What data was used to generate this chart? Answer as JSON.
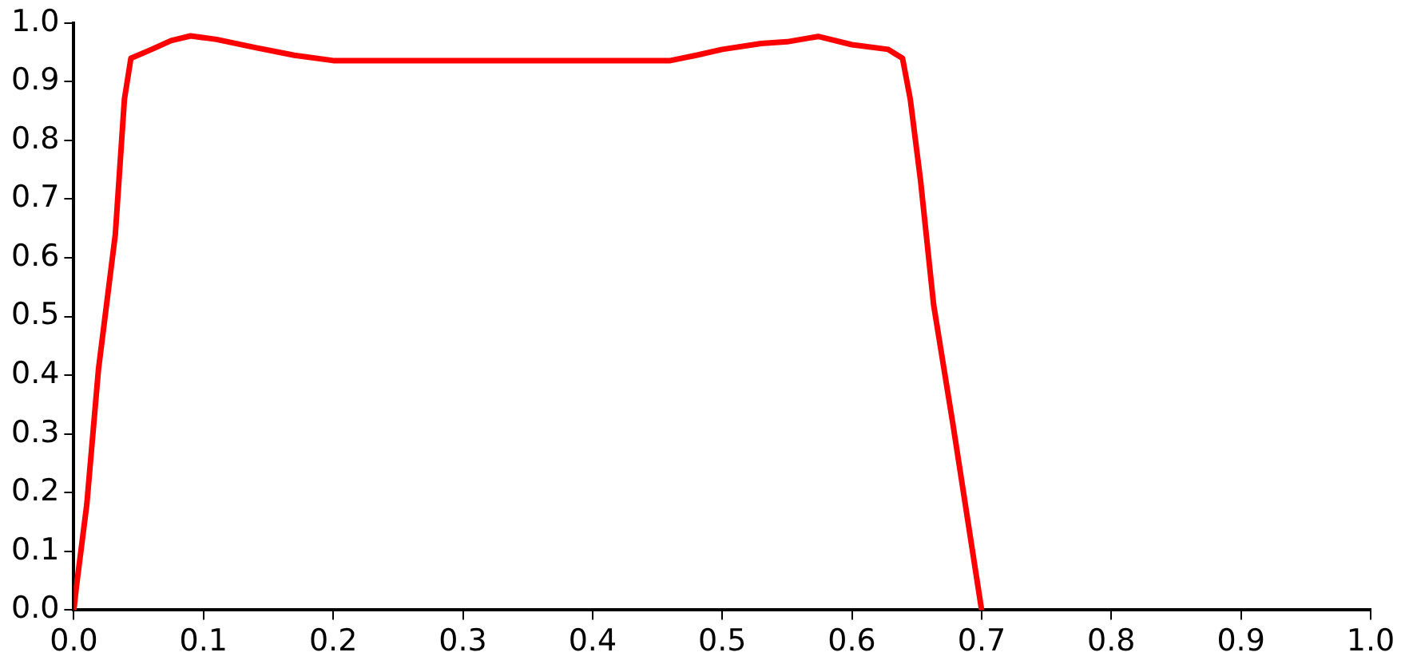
{
  "chart_data": {
    "type": "line",
    "x": [
      0,
      0.002,
      0.01,
      0.019,
      0.032,
      0.039,
      0.044,
      0.06,
      0.075,
      0.09,
      0.11,
      0.14,
      0.17,
      0.2,
      0.3,
      0.4,
      0.46,
      0.48,
      0.5,
      0.53,
      0.55,
      0.574,
      0.6,
      0.628,
      0.639,
      0.645,
      0.653,
      0.663,
      0.678,
      0.7
    ],
    "series": [
      {
        "color": "#ff0000",
        "values": [
          0,
          0.04,
          0.18,
          0.41,
          0.64,
          0.87,
          0.94,
          0.955,
          0.97,
          0.978,
          0.972,
          0.958,
          0.945,
          0.936,
          0.936,
          0.936,
          0.936,
          0.945,
          0.955,
          0.965,
          0.968,
          0.977,
          0.963,
          0.955,
          0.94,
          0.87,
          0.73,
          0.52,
          0.315,
          0
        ]
      }
    ],
    "xlim": [
      0,
      1
    ],
    "xticks": [
      {
        "value": 0,
        "label": "0.0"
      },
      0.1,
      0.2,
      0.3,
      0.4,
      0.5,
      0.6,
      0.7,
      0.8,
      0.9,
      {
        "value": 1,
        "label": "1.0"
      }
    ],
    "ylim": [
      0,
      1
    ],
    "yticks": [
      {
        "value": 0,
        "label": "0.0"
      },
      0.1,
      0.2,
      0.3,
      0.4,
      0.5,
      0.6,
      0.7,
      0.8,
      0.9,
      {
        "value": 1,
        "label": "1.0"
      }
    ],
    "grid": false,
    "legend": false,
    "marker": "none",
    "line_style": "solid"
  }
}
